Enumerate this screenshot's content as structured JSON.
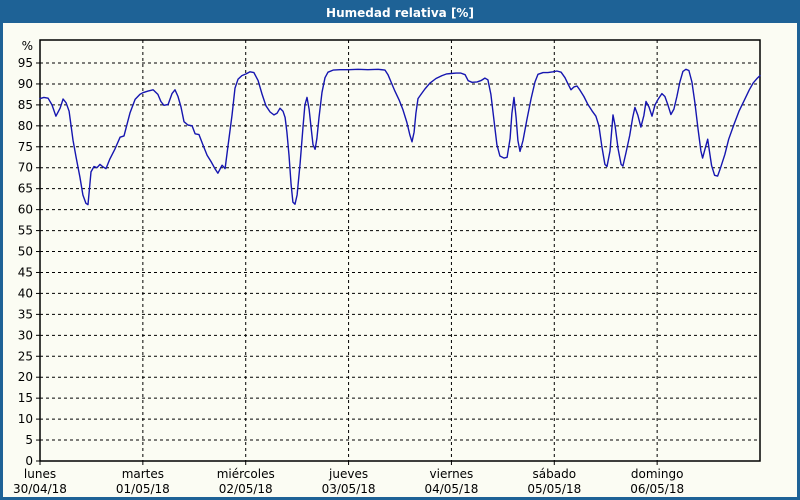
{
  "window": {
    "title": "Humedad relativa [%]",
    "title_bg": "#1e6296",
    "border_color": "#1e6296",
    "content_bg": "#fbfcf3"
  },
  "chart_data": {
    "type": "line",
    "title": "Humedad relativa [%]",
    "unit_label": "%",
    "ylabel": "%",
    "xlabel": "",
    "ylim": [
      0,
      100.5
    ],
    "grid": "dashed",
    "grid_color": "#000000",
    "line_color": "#1616b0",
    "legend_position": "none",
    "y_ticks": [
      95,
      90,
      85,
      80,
      75,
      70,
      65,
      60,
      55,
      50,
      45,
      40,
      35,
      30,
      25,
      20,
      15,
      10,
      5,
      0
    ],
    "x_axis": {
      "span_days": 7,
      "days": [
        {
          "name": "lunes",
          "date": "30/04/18"
        },
        {
          "name": "martes",
          "date": "01/05/18"
        },
        {
          "name": "miércoles",
          "date": "02/05/18"
        },
        {
          "name": "jueves",
          "date": "03/05/18"
        },
        {
          "name": "viernes",
          "date": "04/05/18"
        },
        {
          "name": "sábado",
          "date": "05/05/18"
        },
        {
          "name": "domingo",
          "date": "06/05/18"
        }
      ]
    },
    "series": [
      {
        "name": "Humedad relativa",
        "x_unit": "hours_since_mon_00",
        "points": [
          [
            0.0,
            86.5
          ],
          [
            0.9,
            86.8
          ],
          [
            1.9,
            86.6
          ],
          [
            2.8,
            85.0
          ],
          [
            3.7,
            82.3
          ],
          [
            4.7,
            84.2
          ],
          [
            5.4,
            86.4
          ],
          [
            6.1,
            85.5
          ],
          [
            6.8,
            83.5
          ],
          [
            7.7,
            76.6
          ],
          [
            8.4,
            72.6
          ],
          [
            9.3,
            67.8
          ],
          [
            10.0,
            63.5
          ],
          [
            10.7,
            61.5
          ],
          [
            11.2,
            61.2
          ],
          [
            11.9,
            69.0
          ],
          [
            12.6,
            70.3
          ],
          [
            13.3,
            70.0
          ],
          [
            14.0,
            70.8
          ],
          [
            14.7,
            70.2
          ],
          [
            15.4,
            69.8
          ],
          [
            16.3,
            72.1
          ],
          [
            17.5,
            74.5
          ],
          [
            18.7,
            77.3
          ],
          [
            19.6,
            77.6
          ],
          [
            21.0,
            83.1
          ],
          [
            22.2,
            86.3
          ],
          [
            23.3,
            87.5
          ],
          [
            24.0,
            87.9
          ],
          [
            25.2,
            88.3
          ],
          [
            26.4,
            88.6
          ],
          [
            27.5,
            87.5
          ],
          [
            28.2,
            85.8
          ],
          [
            28.9,
            84.9
          ],
          [
            29.9,
            85.1
          ],
          [
            30.8,
            87.7
          ],
          [
            31.5,
            88.6
          ],
          [
            32.2,
            87.0
          ],
          [
            32.9,
            84.5
          ],
          [
            33.6,
            81.0
          ],
          [
            34.5,
            80.2
          ],
          [
            35.5,
            80.0
          ],
          [
            36.2,
            78.1
          ],
          [
            37.1,
            77.9
          ],
          [
            38.0,
            75.5
          ],
          [
            39.0,
            73.0
          ],
          [
            39.9,
            71.5
          ],
          [
            40.8,
            69.8
          ],
          [
            41.5,
            68.7
          ],
          [
            42.5,
            70.6
          ],
          [
            43.2,
            69.8
          ],
          [
            43.9,
            75.4
          ],
          [
            44.8,
            82.5
          ],
          [
            45.5,
            89.0
          ],
          [
            46.2,
            91.1
          ],
          [
            47.1,
            92.0
          ],
          [
            48.1,
            92.4
          ],
          [
            49.0,
            92.9
          ],
          [
            49.9,
            92.7
          ],
          [
            50.9,
            90.8
          ],
          [
            51.8,
            87.6
          ],
          [
            52.7,
            84.8
          ],
          [
            53.7,
            83.3
          ],
          [
            54.6,
            82.6
          ],
          [
            55.3,
            83.0
          ],
          [
            56.0,
            84.2
          ],
          [
            56.7,
            83.5
          ],
          [
            57.2,
            82.0
          ],
          [
            57.6,
            78.5
          ],
          [
            58.1,
            73.0
          ],
          [
            58.6,
            66.0
          ],
          [
            59.0,
            61.8
          ],
          [
            59.5,
            61.3
          ],
          [
            60.0,
            63.5
          ],
          [
            60.7,
            71.0
          ],
          [
            61.4,
            80.0
          ],
          [
            61.8,
            85.0
          ],
          [
            62.3,
            86.8
          ],
          [
            62.8,
            84.0
          ],
          [
            63.2,
            80.0
          ],
          [
            63.7,
            75.5
          ],
          [
            64.2,
            74.4
          ],
          [
            64.6,
            77.0
          ],
          [
            65.1,
            82.0
          ],
          [
            65.8,
            88.0
          ],
          [
            66.5,
            91.5
          ],
          [
            67.2,
            92.8
          ],
          [
            68.4,
            93.3
          ],
          [
            70.0,
            93.4
          ],
          [
            72.1,
            93.4
          ],
          [
            74.2,
            93.5
          ],
          [
            76.5,
            93.4
          ],
          [
            78.9,
            93.5
          ],
          [
            80.5,
            93.3
          ],
          [
            81.2,
            92.2
          ],
          [
            81.9,
            90.5
          ],
          [
            82.8,
            88.3
          ],
          [
            83.8,
            86.2
          ],
          [
            84.7,
            83.8
          ],
          [
            85.6,
            80.8
          ],
          [
            86.3,
            77.8
          ],
          [
            86.8,
            76.2
          ],
          [
            87.3,
            78.5
          ],
          [
            87.7,
            83.0
          ],
          [
            88.2,
            86.5
          ],
          [
            88.9,
            87.5
          ],
          [
            89.8,
            88.8
          ],
          [
            91.0,
            90.2
          ],
          [
            92.4,
            91.3
          ],
          [
            93.8,
            92.0
          ],
          [
            94.9,
            92.4
          ],
          [
            95.9,
            92.5
          ],
          [
            97.1,
            92.6
          ],
          [
            98.2,
            92.6
          ],
          [
            99.2,
            92.2
          ],
          [
            99.9,
            90.8
          ],
          [
            100.8,
            90.4
          ],
          [
            102.0,
            90.5
          ],
          [
            102.9,
            90.8
          ],
          [
            103.8,
            91.4
          ],
          [
            104.5,
            91.0
          ],
          [
            105.2,
            87.5
          ],
          [
            105.9,
            81.5
          ],
          [
            106.6,
            75.5
          ],
          [
            107.3,
            72.8
          ],
          [
            108.3,
            72.3
          ],
          [
            109.0,
            72.5
          ],
          [
            109.7,
            77.0
          ],
          [
            110.1,
            83.0
          ],
          [
            110.6,
            86.8
          ],
          [
            111.1,
            82.0
          ],
          [
            111.5,
            76.5
          ],
          [
            112.0,
            73.9
          ],
          [
            112.7,
            76.5
          ],
          [
            113.6,
            81.5
          ],
          [
            114.6,
            86.5
          ],
          [
            115.5,
            90.5
          ],
          [
            116.2,
            92.3
          ],
          [
            117.4,
            92.7
          ],
          [
            118.5,
            92.7
          ],
          [
            119.7,
            92.9
          ],
          [
            120.6,
            93.1
          ],
          [
            121.6,
            92.8
          ],
          [
            122.5,
            91.5
          ],
          [
            123.2,
            90.0
          ],
          [
            123.9,
            88.6
          ],
          [
            124.6,
            89.3
          ],
          [
            125.3,
            89.5
          ],
          [
            126.0,
            88.5
          ],
          [
            126.9,
            87.0
          ],
          [
            127.8,
            85.2
          ],
          [
            128.8,
            83.6
          ],
          [
            129.7,
            82.3
          ],
          [
            130.4,
            80.0
          ],
          [
            131.1,
            75.0
          ],
          [
            131.8,
            70.8
          ],
          [
            132.3,
            70.3
          ],
          [
            133.0,
            74.0
          ],
          [
            133.7,
            82.6
          ],
          [
            134.2,
            80.0
          ],
          [
            134.9,
            74.5
          ],
          [
            135.6,
            70.8
          ],
          [
            136.0,
            70.4
          ],
          [
            136.7,
            73.5
          ],
          [
            137.6,
            77.7
          ],
          [
            138.3,
            82.0
          ],
          [
            138.8,
            84.4
          ],
          [
            139.5,
            82.5
          ],
          [
            140.2,
            79.7
          ],
          [
            140.9,
            82.5
          ],
          [
            141.4,
            85.8
          ],
          [
            142.1,
            84.5
          ],
          [
            142.8,
            82.3
          ],
          [
            143.5,
            85.0
          ],
          [
            144.2,
            86.3
          ],
          [
            145.1,
            87.7
          ],
          [
            145.8,
            87.0
          ],
          [
            146.5,
            85.0
          ],
          [
            147.2,
            82.7
          ],
          [
            147.9,
            84.0
          ],
          [
            148.6,
            87.0
          ],
          [
            149.3,
            90.5
          ],
          [
            150.0,
            93.0
          ],
          [
            150.7,
            93.5
          ],
          [
            151.4,
            93.2
          ],
          [
            152.1,
            90.5
          ],
          [
            152.8,
            85.5
          ],
          [
            153.5,
            79.5
          ],
          [
            154.2,
            74.0
          ],
          [
            154.6,
            72.3
          ],
          [
            155.3,
            75.0
          ],
          [
            155.8,
            76.8
          ],
          [
            156.2,
            74.0
          ],
          [
            156.7,
            70.5
          ],
          [
            157.4,
            68.2
          ],
          [
            158.1,
            68.0
          ],
          [
            158.8,
            70.0
          ],
          [
            159.8,
            73.2
          ],
          [
            160.7,
            76.8
          ],
          [
            161.9,
            80.3
          ],
          [
            163.1,
            83.5
          ],
          [
            164.3,
            86.0
          ],
          [
            165.5,
            88.6
          ],
          [
            166.4,
            90.2
          ],
          [
            167.4,
            91.4
          ],
          [
            168.0,
            92.0
          ]
        ]
      }
    ]
  }
}
